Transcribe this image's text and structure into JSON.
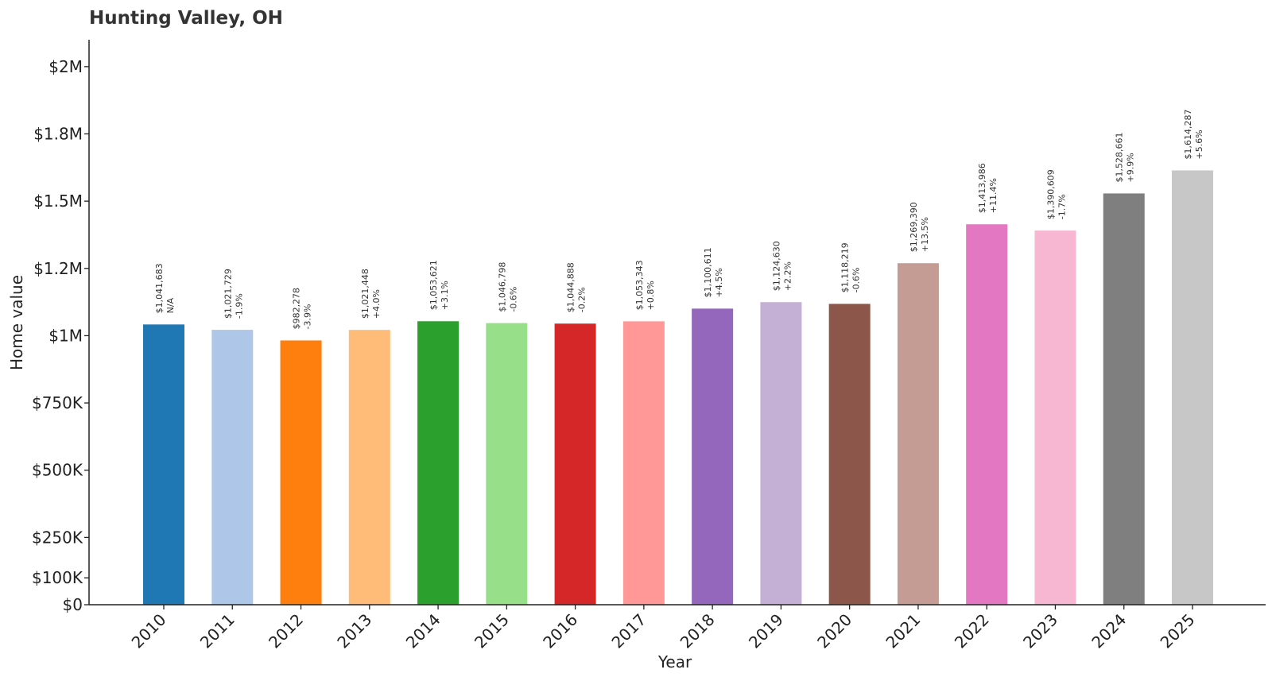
{
  "chart_data": {
    "type": "bar",
    "title": "Hunting Valley, OH",
    "xlabel": "Year",
    "ylabel": "Home value",
    "categories": [
      "2010",
      "2011",
      "2012",
      "2013",
      "2014",
      "2015",
      "2016",
      "2017",
      "2018",
      "2019",
      "2020",
      "2021",
      "2022",
      "2023",
      "2024",
      "2025"
    ],
    "values": [
      1041683,
      1021729,
      982278,
      1021448,
      1053621,
      1046798,
      1044888,
      1053343,
      1100611,
      1124630,
      1118219,
      1269390,
      1413986,
      1390609,
      1528661,
      1614287
    ],
    "value_labels": [
      "$1,041,683",
      "$1,021,729",
      "$982,278",
      "$1,021,448",
      "$1,053,621",
      "$1,046,798",
      "$1,044,888",
      "$1,053,343",
      "$1,100,611",
      "$1,124,630",
      "$1,118,219",
      "$1,269,390",
      "$1,413,986",
      "$1,390,609",
      "$1,528,661",
      "$1,614,287"
    ],
    "change_labels": [
      "N/A",
      "-1.9%",
      "-3.9%",
      "+4.0%",
      "+3.1%",
      "-0.6%",
      "-0.2%",
      "+0.8%",
      "+4.5%",
      "+2.2%",
      "-0.6%",
      "+13.5%",
      "+11.4%",
      "-1.7%",
      "+9.9%",
      "+5.6%"
    ],
    "colors": [
      "#1f77b4",
      "#aec7e8",
      "#ff7f0e",
      "#ffbb78",
      "#2ca02c",
      "#98df8a",
      "#d62728",
      "#ff9896",
      "#9467bd",
      "#c5b0d5",
      "#8c564b",
      "#c49c94",
      "#e377c2",
      "#f7b6d2",
      "#7f7f7f",
      "#c7c7c7"
    ],
    "yticks": [
      0,
      100000,
      250000,
      500000,
      750000,
      1000000,
      1250000,
      1500000,
      1750000,
      2000000
    ],
    "ytick_labels": [
      "$0",
      "$100K",
      "$250K",
      "$500K",
      "$750K",
      "$1M",
      "$1.2M",
      "$1.5M",
      "$1.8M",
      "$2M"
    ],
    "ylim": [
      0,
      2100000
    ],
    "grid": false,
    "legend": "none"
  }
}
